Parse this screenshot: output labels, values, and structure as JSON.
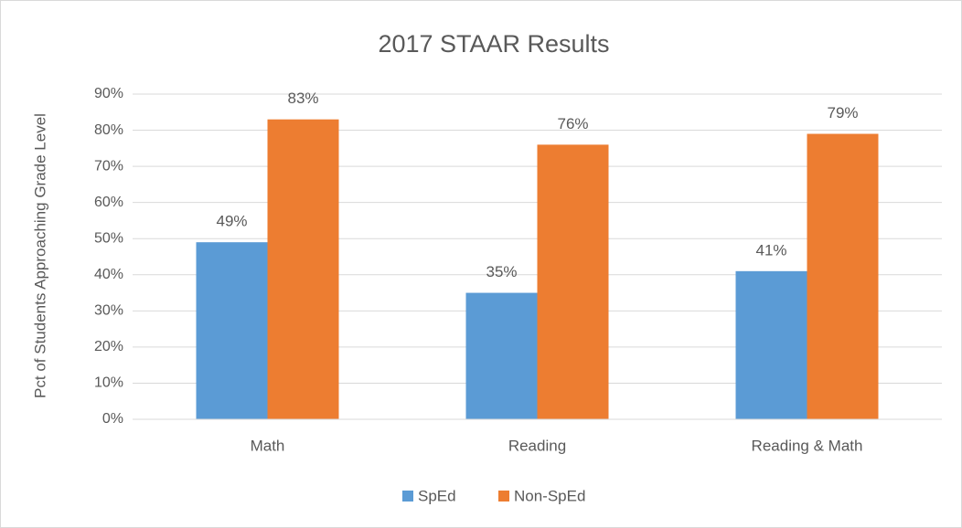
{
  "chart_data": {
    "type": "bar",
    "title": "2017 STAAR Results",
    "y_label": "Pct of Students Approaching Grade Level",
    "categories": [
      "Math",
      "Reading",
      "Reading & Math"
    ],
    "series": [
      {
        "name": "SpEd",
        "color": "#5b9bd5",
        "values": [
          49,
          35,
          41
        ],
        "value_labels": [
          "49%",
          "35%",
          "41%"
        ]
      },
      {
        "name": "Non-SpEd",
        "color": "#ed7d31",
        "values": [
          83,
          76,
          79
        ],
        "value_labels": [
          "83%",
          "76%",
          "79%"
        ]
      }
    ],
    "ylim": [
      0,
      90
    ],
    "yticks": [
      {
        "value": 0,
        "label": "0%"
      },
      {
        "value": 10,
        "label": "10%"
      },
      {
        "value": 20,
        "label": "20%"
      },
      {
        "value": 30,
        "label": "30%"
      },
      {
        "value": 40,
        "label": "40%"
      },
      {
        "value": 50,
        "label": "50%"
      },
      {
        "value": 60,
        "label": "60%"
      },
      {
        "value": 70,
        "label": "70%"
      },
      {
        "value": 80,
        "label": "80%"
      },
      {
        "value": 90,
        "label": "90%"
      }
    ],
    "grid": true,
    "legend": "bottom"
  }
}
